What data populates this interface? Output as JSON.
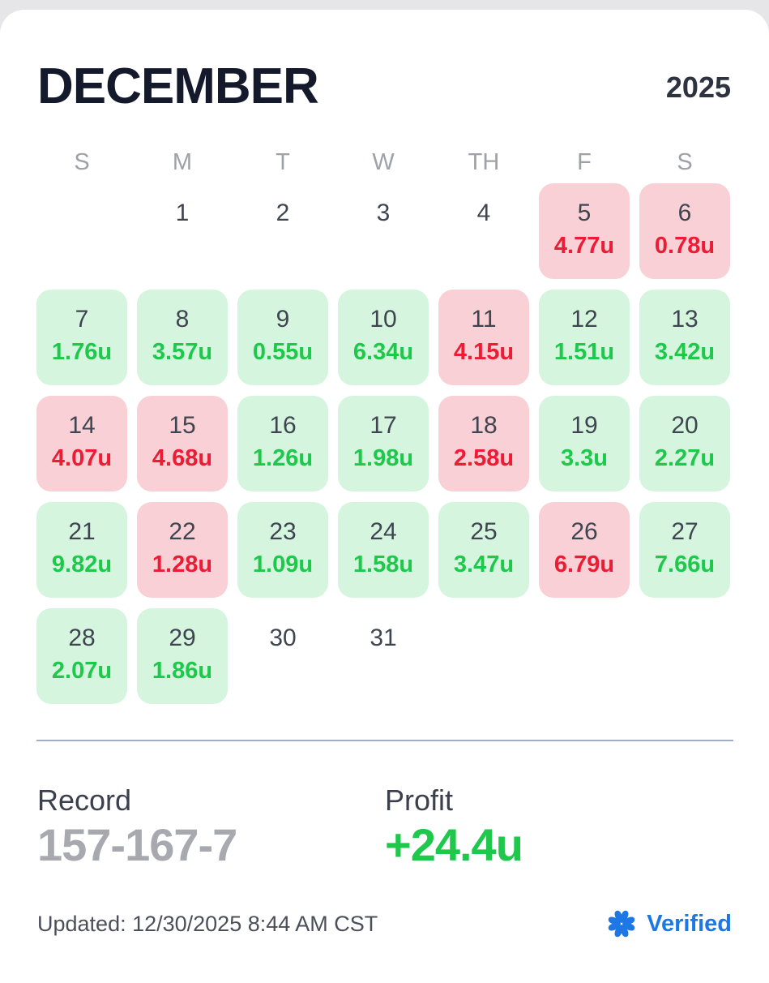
{
  "header": {
    "month": "DECEMBER",
    "year": "2025"
  },
  "weekdays": [
    "S",
    "M",
    "T",
    "W",
    "TH",
    "F",
    "S"
  ],
  "days": [
    {
      "day": "1",
      "value": null,
      "status": "none"
    },
    {
      "day": "2",
      "value": null,
      "status": "none"
    },
    {
      "day": "3",
      "value": null,
      "status": "none"
    },
    {
      "day": "4",
      "value": null,
      "status": "none"
    },
    {
      "day": "5",
      "value": "4.77u",
      "status": "loss"
    },
    {
      "day": "6",
      "value": "0.78u",
      "status": "loss"
    },
    {
      "day": "7",
      "value": "1.76u",
      "status": "win"
    },
    {
      "day": "8",
      "value": "3.57u",
      "status": "win"
    },
    {
      "day": "9",
      "value": "0.55u",
      "status": "win"
    },
    {
      "day": "10",
      "value": "6.34u",
      "status": "win"
    },
    {
      "day": "11",
      "value": "4.15u",
      "status": "loss"
    },
    {
      "day": "12",
      "value": "1.51u",
      "status": "win"
    },
    {
      "day": "13",
      "value": "3.42u",
      "status": "win"
    },
    {
      "day": "14",
      "value": "4.07u",
      "status": "loss"
    },
    {
      "day": "15",
      "value": "4.68u",
      "status": "loss"
    },
    {
      "day": "16",
      "value": "1.26u",
      "status": "win"
    },
    {
      "day": "17",
      "value": "1.98u",
      "status": "win"
    },
    {
      "day": "18",
      "value": "2.58u",
      "status": "loss"
    },
    {
      "day": "19",
      "value": "3.3u",
      "status": "win"
    },
    {
      "day": "20",
      "value": "2.27u",
      "status": "win"
    },
    {
      "day": "21",
      "value": "9.82u",
      "status": "win"
    },
    {
      "day": "22",
      "value": "1.28u",
      "status": "loss"
    },
    {
      "day": "23",
      "value": "1.09u",
      "status": "win"
    },
    {
      "day": "24",
      "value": "1.58u",
      "status": "win"
    },
    {
      "day": "25",
      "value": "3.47u",
      "status": "win"
    },
    {
      "day": "26",
      "value": "6.79u",
      "status": "loss"
    },
    {
      "day": "27",
      "value": "7.66u",
      "status": "win"
    },
    {
      "day": "28",
      "value": "2.07u",
      "status": "win"
    },
    {
      "day": "29",
      "value": "1.86u",
      "status": "win"
    },
    {
      "day": "30",
      "value": null,
      "status": "none"
    },
    {
      "day": "31",
      "value": null,
      "status": "none"
    }
  ],
  "summary": {
    "record_label": "Record",
    "record_value": "157-167-7",
    "profit_label": "Profit",
    "profit_value": "+24.4u"
  },
  "footer": {
    "updated": "Updated: 12/30/2025 8:44 AM CST",
    "verified_label": "Verified",
    "verified_icon": "clover-icon"
  },
  "colors": {
    "win_bg": "#d6f5df",
    "win_text": "#1ec84b",
    "loss_bg": "#f8d0d5",
    "loss_text": "#ec1c34",
    "verified": "#1d78e6"
  }
}
